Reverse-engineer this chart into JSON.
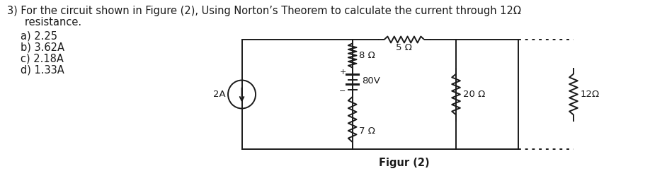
{
  "title_line1": "3) For the circuit shown in Figure (2), Using Norton’s Theorem to calculate the current through 12Ω",
  "title_line2": "   resistance.",
  "options": [
    "a) 2.25",
    "b) 3.62A",
    "c) 2.18A",
    "d) 1.33A"
  ],
  "fig_label": "Figur (2)",
  "bg_color": "#ffffff",
  "text_color": "#1a1a1a",
  "circuit_color": "#1a1a1a",
  "font_size_title": 10.5,
  "font_size_options": 10.5,
  "font_size_labels": 9.5,
  "font_size_fig_label": 10.5,
  "resistor_labels": [
    "5 Ω",
    "8 Ω",
    "20 Ω",
    "12Ω",
    "7 Ω"
  ],
  "source_label": "2A",
  "voltage_label": "80V"
}
